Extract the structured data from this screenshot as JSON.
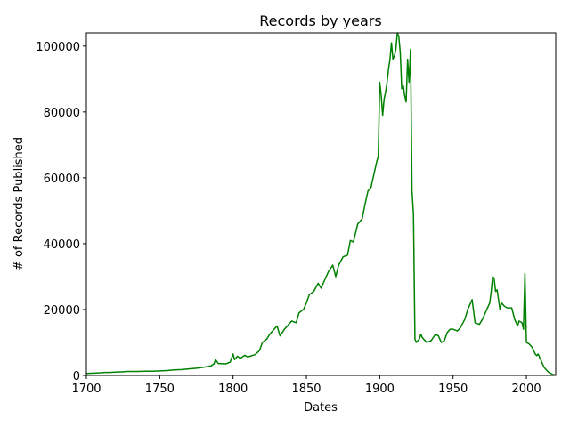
{
  "chart_data": {
    "type": "line",
    "title": "Records by years",
    "xlabel": "Dates",
    "ylabel": "# of Records Published",
    "xlim": [
      1700,
      2020
    ],
    "ylim": [
      0,
      104000
    ],
    "grid": false,
    "xticks": [
      1700,
      1750,
      1800,
      1850,
      1900,
      1950,
      2000
    ],
    "yticks": [
      0,
      20000,
      40000,
      60000,
      80000,
      100000
    ],
    "series": [
      {
        "color": "#008000",
        "x": [
          1700,
          1705,
          1710,
          1712,
          1715,
          1720,
          1725,
          1728,
          1730,
          1735,
          1740,
          1745,
          1750,
          1755,
          1760,
          1765,
          1770,
          1775,
          1780,
          1785,
          1787,
          1788,
          1790,
          1795,
          1798,
          1800,
          1801,
          1803,
          1805,
          1808,
          1810,
          1815,
          1818,
          1820,
          1823,
          1825,
          1828,
          1830,
          1832,
          1835,
          1838,
          1840,
          1843,
          1845,
          1848,
          1850,
          1852,
          1855,
          1858,
          1860,
          1862,
          1865,
          1868,
          1870,
          1872,
          1875,
          1878,
          1880,
          1882,
          1885,
          1888,
          1890,
          1892,
          1894,
          1896,
          1898,
          1899,
          1900,
          1901,
          1902,
          1903,
          1904,
          1905,
          1906,
          1907,
          1908,
          1909,
          1910,
          1911,
          1912,
          1913,
          1914,
          1915,
          1916,
          1917,
          1918,
          1919,
          1920,
          1921,
          1922,
          1923,
          1924,
          1925,
          1926,
          1927,
          1928,
          1929,
          1930,
          1932,
          1935,
          1938,
          1940,
          1942,
          1944,
          1946,
          1948,
          1950,
          1953,
          1955,
          1958,
          1960,
          1962,
          1963,
          1965,
          1968,
          1970,
          1973,
          1975,
          1976,
          1977,
          1978,
          1979,
          1980,
          1982,
          1983,
          1985,
          1987,
          1990,
          1992,
          1994,
          1995,
          1997,
          1998,
          1999,
          2000,
          2002,
          2004,
          2006,
          2007,
          2008,
          2010,
          2012,
          2015,
          2018,
          2020
        ],
        "y": [
          600,
          700,
          800,
          900,
          900,
          1000,
          1100,
          1200,
          1200,
          1200,
          1300,
          1300,
          1400,
          1500,
          1700,
          1800,
          2000,
          2200,
          2500,
          2900,
          3500,
          4800,
          3600,
          3500,
          4000,
          6500,
          4800,
          5800,
          5200,
          6100,
          5600,
          6300,
          7500,
          10000,
          11000,
          12500,
          14000,
          15000,
          12000,
          14000,
          15500,
          16500,
          16000,
          19000,
          20000,
          22000,
          24500,
          25500,
          28000,
          26500,
          28500,
          31500,
          33500,
          30000,
          33500,
          36000,
          36500,
          41000,
          40500,
          46000,
          47500,
          52000,
          56000,
          57000,
          61000,
          65000,
          66500,
          89000,
          85000,
          79000,
          84000,
          86000,
          89000,
          93000,
          96000,
          101000,
          96000,
          97000,
          99000,
          104000,
          103000,
          98000,
          87000,
          88000,
          85000,
          83000,
          96000,
          89000,
          99000,
          56000,
          49000,
          11000,
          10000,
          10500,
          11000,
          12500,
          11500,
          11000,
          10000,
          10500,
          12500,
          12000,
          10000,
          10500,
          13000,
          14000,
          14000,
          13500,
          14500,
          17000,
          20000,
          22000,
          23000,
          16000,
          15500,
          17000,
          20000,
          22000,
          25500,
          30000,
          29500,
          25500,
          26000,
          20000,
          22000,
          21000,
          20500,
          20500,
          17000,
          15000,
          16500,
          16000,
          14000,
          31000,
          10000,
          9500,
          8500,
          6500,
          6000,
          6500,
          4500,
          2500,
          1000,
          300,
          100
        ]
      }
    ]
  }
}
